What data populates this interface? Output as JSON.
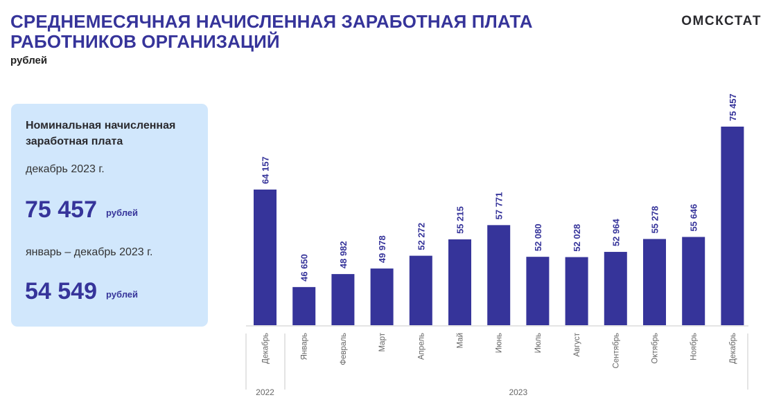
{
  "header": {
    "title_line1": "СРЕДНЕМЕСЯЧНАЯ НАЧИСЛЕННАЯ ЗАРАБОТНАЯ ПЛАТА",
    "title_line2": "РАБОТНИКОВ ОРГАНИЗАЦИЙ",
    "subtitle": "рублей",
    "brand": "ОМСКСТАТ"
  },
  "card": {
    "heading": "Номинальная начисленная заработная плата",
    "period1": "декабрь 2023 г.",
    "value1": "75 457",
    "unit1": "рублей",
    "period2": "январь – декабрь 2023 г.",
    "value2": "54 549",
    "unit2": "рублей"
  },
  "colors": {
    "bar": "#36349a",
    "title": "#36349a",
    "card_bg": "#d1e7fc"
  },
  "chart_data": {
    "type": "bar",
    "title": "",
    "xlabel": "",
    "ylabel": "",
    "categories": [
      "Декабрь",
      "Январь",
      "Февраль",
      "Март",
      "Апрель",
      "Май",
      "Июнь",
      "Июль",
      "Август",
      "Сентябрь",
      "Октябрь",
      "Ноябрь",
      "Декабрь"
    ],
    "values": [
      64157,
      46650,
      48982,
      49978,
      52272,
      55215,
      57771,
      52080,
      52028,
      52964,
      55278,
      55646,
      75457
    ],
    "labels": [
      "64 157",
      "46 650",
      "48 982",
      "49 978",
      "52 272",
      "55 215",
      "57 771",
      "52 080",
      "52 028",
      "52 964",
      "55 278",
      "55 646",
      "75 457"
    ],
    "groups": [
      {
        "label": "2022",
        "count": 1
      },
      {
        "label": "2023",
        "count": 12
      }
    ],
    "ylim": [
      39800,
      75457
    ],
    "grid": false,
    "legend": "none"
  }
}
